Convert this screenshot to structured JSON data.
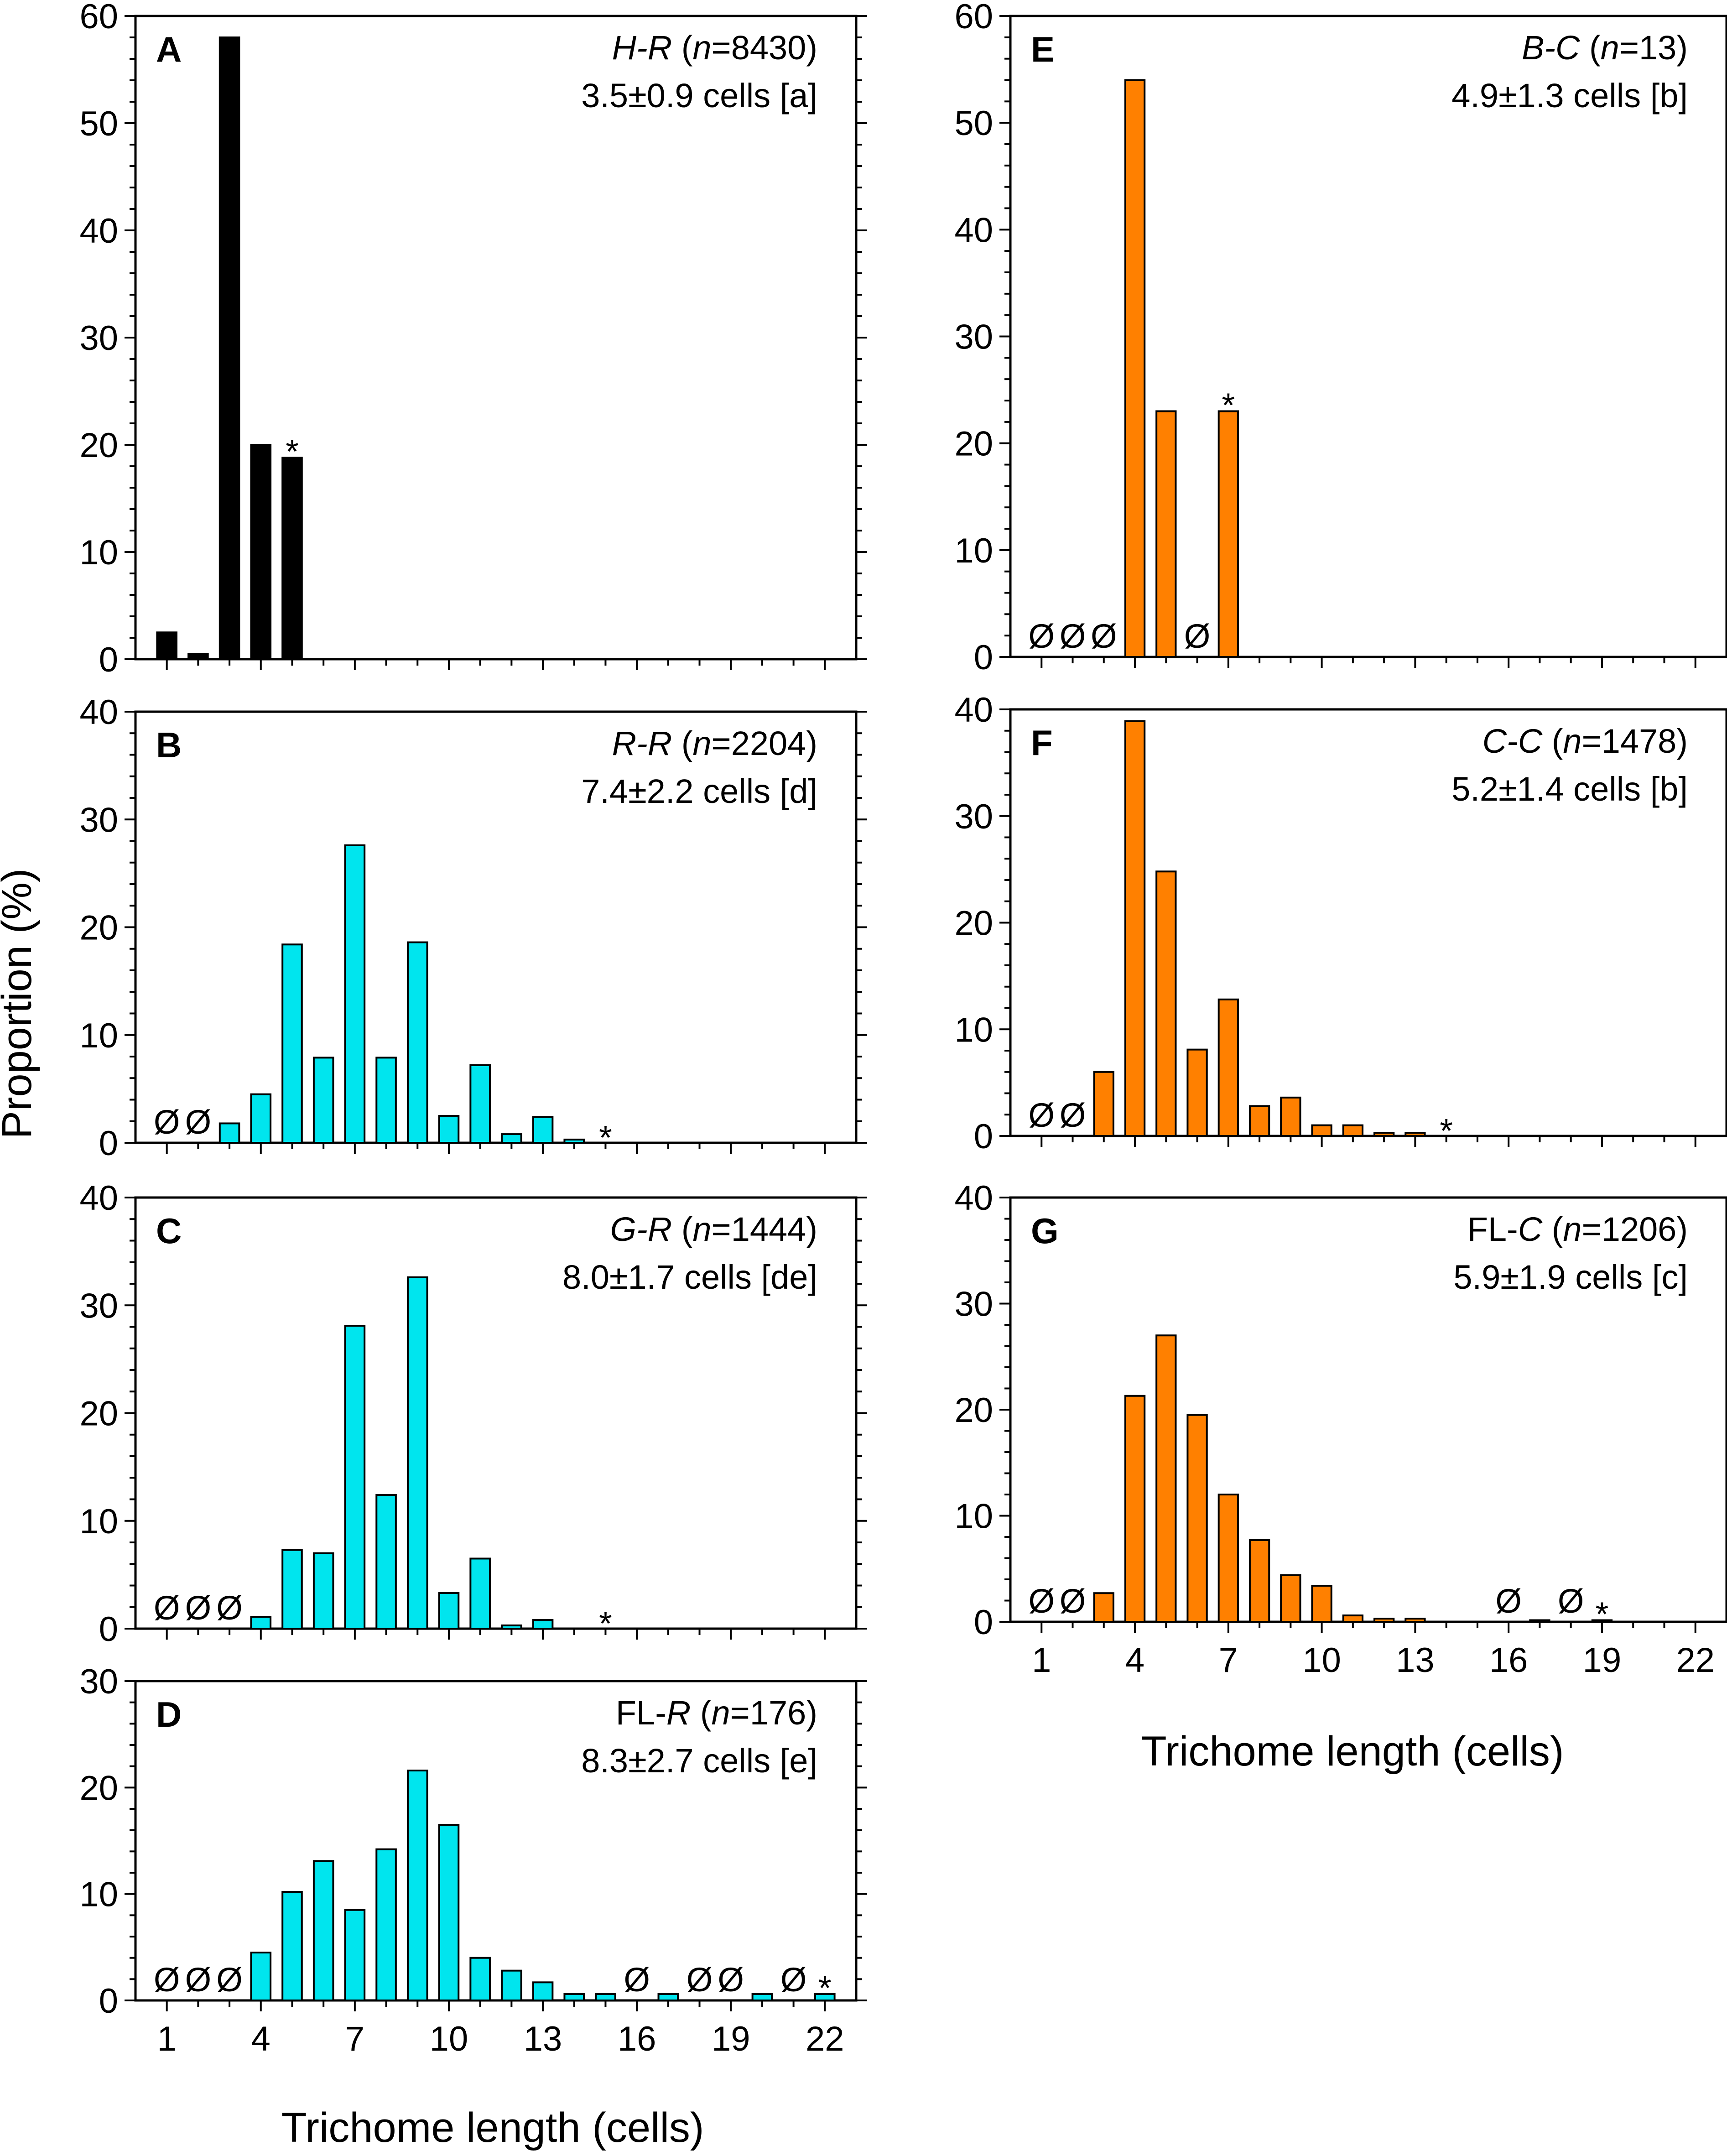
{
  "figure": {
    "ylabel": "Proportion (%)",
    "xlabel_left": "Trichome length (cells)",
    "xlabel_right": "Trichome length (cells)"
  },
  "chart_data": [
    {
      "type": "bar",
      "panel": "A",
      "color": "#000000",
      "title_name": "H-R",
      "n_label": "n",
      "n_value": "=8430",
      "stats": "3.5±0.9 cells [a]",
      "x": [
        1,
        2,
        3,
        4,
        5
      ],
      "values": [
        2.5,
        0.5,
        58,
        20,
        18.8
      ],
      "ylim": [
        0,
        60
      ],
      "yticks": [
        0,
        10,
        20,
        30,
        40,
        50,
        60
      ],
      "xlim": [
        0,
        23
      ],
      "xticks": [
        1,
        4,
        7,
        10,
        13,
        16,
        19,
        22
      ],
      "empty_symbol": "Ø",
      "empty": [],
      "max_symbol": "*",
      "max_at": 5
    },
    {
      "type": "bar",
      "panel": "B",
      "color": "#00e5ee",
      "title_name": "R-R",
      "n_label": "n",
      "n_value": "=2204",
      "stats": "7.4±2.2 cells [d]",
      "x": [
        3,
        4,
        5,
        6,
        7,
        8,
        9,
        10,
        11,
        12,
        13,
        14
      ],
      "values": [
        1.8,
        4.5,
        18.4,
        7.9,
        27.6,
        7.9,
        18.6,
        2.5,
        7.2,
        0.8,
        2.4,
        0.3
      ],
      "ylim": [
        0,
        40
      ],
      "yticks": [
        0,
        10,
        20,
        30,
        40
      ],
      "xlim": [
        0,
        23
      ],
      "xticks": [
        1,
        4,
        7,
        10,
        13,
        16,
        19,
        22
      ],
      "empty_symbol": "Ø",
      "empty": [
        1,
        2
      ],
      "max_symbol": "*",
      "max_at": 15
    },
    {
      "type": "bar",
      "panel": "C",
      "color": "#00e5ee",
      "title_name": "G-R",
      "n_label": "n",
      "n_value": "=1444",
      "stats": "8.0±1.7 cells [de]",
      "x": [
        4,
        5,
        6,
        7,
        8,
        9,
        10,
        11,
        12,
        13
      ],
      "values": [
        1.1,
        7.3,
        7.0,
        28.1,
        12.4,
        32.6,
        3.3,
        6.5,
        0.3,
        0.8
      ],
      "ylim": [
        0,
        40
      ],
      "yticks": [
        0,
        10,
        20,
        30,
        40
      ],
      "xlim": [
        0,
        23
      ],
      "xticks": [
        1,
        4,
        7,
        10,
        13,
        16,
        19,
        22
      ],
      "empty_symbol": "Ø",
      "empty": [
        1,
        2,
        3
      ],
      "max_symbol": "*",
      "max_at": 15
    },
    {
      "type": "bar",
      "panel": "D",
      "color": "#00e5ee",
      "title_name": "R",
      "title_prefix": "FL-",
      "n_label": "n",
      "n_value": "=176",
      "stats": "8.3±2.7 cells [e]",
      "x": [
        4,
        5,
        6,
        7,
        8,
        9,
        10,
        11,
        12,
        13,
        14,
        15,
        17,
        20,
        22
      ],
      "values": [
        4.5,
        10.2,
        13.1,
        8.5,
        14.2,
        21.6,
        16.5,
        4.0,
        2.8,
        1.7,
        0.6,
        0.6,
        0.6,
        0.6,
        0.6
      ],
      "ylim": [
        0,
        30
      ],
      "yticks": [
        0,
        10,
        20,
        30
      ],
      "xlim": [
        0,
        23
      ],
      "xticks": [
        1,
        4,
        7,
        10,
        13,
        16,
        19,
        22
      ],
      "empty_symbol": "Ø",
      "empty": [
        1,
        2,
        3,
        16,
        18,
        19,
        21
      ],
      "max_symbol": "*",
      "max_at": 22
    },
    {
      "type": "bar",
      "panel": "E",
      "color": "#ff8000",
      "title_name": "B-C",
      "n_label": "n",
      "n_value": "=13",
      "stats": "4.9±1.3 cells [b]",
      "x": [
        4,
        5,
        7
      ],
      "values": [
        54,
        23,
        23
      ],
      "ylim": [
        0,
        60
      ],
      "yticks": [
        0,
        10,
        20,
        30,
        40,
        50,
        60
      ],
      "xlim": [
        0,
        23
      ],
      "xticks": [
        1,
        4,
        7,
        10,
        13,
        16,
        19,
        22
      ],
      "empty_symbol": "Ø",
      "empty": [
        1,
        2,
        3,
        6
      ],
      "max_symbol": "*",
      "max_at": 7
    },
    {
      "type": "bar",
      "panel": "F",
      "color": "#ff8000",
      "title_name": "C-C",
      "n_label": "n",
      "n_value": "=1478",
      "stats": "5.2±1.4 cells [b]",
      "x": [
        3,
        4,
        5,
        6,
        7,
        8,
        9,
        10,
        11,
        12,
        13
      ],
      "values": [
        6.0,
        38.9,
        24.8,
        8.1,
        12.8,
        2.8,
        3.6,
        1.0,
        1.0,
        0.3,
        0.3
      ],
      "ylim": [
        0,
        40
      ],
      "yticks": [
        0,
        10,
        20,
        30,
        40
      ],
      "xlim": [
        0,
        23
      ],
      "xticks": [
        1,
        4,
        7,
        10,
        13,
        16,
        19,
        22
      ],
      "empty_symbol": "Ø",
      "empty": [
        1,
        2
      ],
      "max_symbol": "*",
      "max_at": 14
    },
    {
      "type": "bar",
      "panel": "G",
      "color": "#ff8000",
      "title_name": "C",
      "title_prefix": "FL-",
      "n_label": "n",
      "n_value": "=1206",
      "stats": "5.9±1.9 cells [c]",
      "x": [
        3,
        4,
        5,
        6,
        7,
        8,
        9,
        10,
        11,
        12,
        13,
        17,
        19
      ],
      "values": [
        2.7,
        21.3,
        27.0,
        19.5,
        12.0,
        7.7,
        4.4,
        3.4,
        0.6,
        0.3,
        0.3,
        0.15,
        0.15
      ],
      "ylim": [
        0,
        40
      ],
      "yticks": [
        0,
        10,
        20,
        30,
        40
      ],
      "xlim": [
        0,
        23
      ],
      "xticks": [
        1,
        4,
        7,
        10,
        13,
        16,
        19,
        22
      ],
      "empty_symbol": "Ø",
      "empty": [
        1,
        2,
        16,
        18
      ],
      "max_symbol": "*",
      "max_at": 19
    }
  ]
}
